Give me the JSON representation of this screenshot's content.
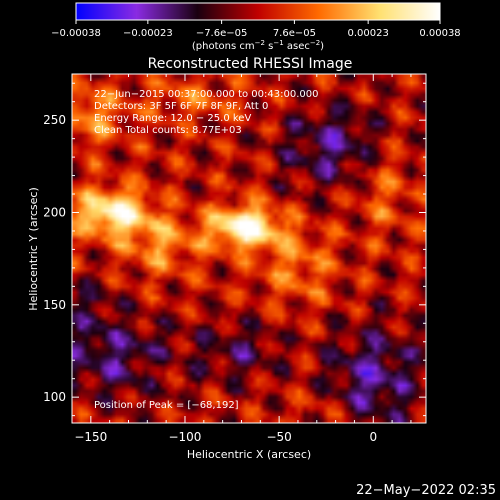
{
  "chart_data": {
    "type": "heatmap",
    "title": "Reconstructed RHESSI Image",
    "xlabel": "Heliocentric X (arcsec)",
    "ylabel": "Heliocentric Y (arcsec)",
    "x_range": [
      -160,
      28
    ],
    "y_range": [
      86,
      275
    ],
    "x_ticks": [
      -150,
      -100,
      -50,
      0
    ],
    "x_tick_labels": [
      "−150",
      "−100",
      "−50",
      "0"
    ],
    "y_ticks": [
      100,
      150,
      200,
      250
    ],
    "y_tick_labels": [
      "100",
      "150",
      "200",
      "250"
    ],
    "colorbar": {
      "range": [
        -0.00038,
        0.00038
      ],
      "ticks": [
        -0.00038,
        -0.00023,
        -7.6e-05,
        7.6e-05,
        0.00023,
        0.00038
      ],
      "tick_labels": [
        "−0.00038",
        "−0.00023",
        "−7.6e−05",
        "7.6e−05",
        "0.00023",
        "0.00038"
      ],
      "units_prefix": "(photons cm",
      "units_exp1": "−2",
      "units_mid1": " s",
      "units_exp2": "−1",
      "units_mid2": " asec",
      "units_exp3": "−2",
      "units_suffix": ")",
      "colors": [
        "#0000ff",
        "#8a2be2",
        "#1a0010",
        "#c00000",
        "#ff6a00",
        "#ffe070",
        "#ffffff"
      ]
    },
    "annotations": [
      "22−Jun−2015 00:37:00.000 to 00:43:00.000",
      "Detectors: 3F 5F 6F 7F 8F 9F, Att 0",
      "Energy Range: 12.0 − 25.0 keV",
      "Clean     Total counts: 8.77E+03"
    ],
    "peak_label": "Position of Peak = [−68,192]",
    "peak": [
      -68,
      192
    ],
    "sources": [
      {
        "x": -68,
        "y": 192,
        "amp": 0.00038,
        "sx": 13,
        "sy": 8
      },
      {
        "x": -138,
        "y": 200,
        "amp": 0.00034,
        "sx": 14,
        "sy": 9
      },
      {
        "x": -112,
        "y": 182,
        "amp": 0.00016,
        "sx": 14,
        "sy": 10
      },
      {
        "x": -40,
        "y": 170,
        "amp": 0.00013,
        "sx": 14,
        "sy": 14
      },
      {
        "x": -150,
        "y": 252,
        "amp": 0.00015,
        "sx": 12,
        "sy": 12
      },
      {
        "x": -95,
        "y": 262,
        "amp": 0.0001,
        "sx": 18,
        "sy": 8
      },
      {
        "x": 5,
        "y": 215,
        "amp": 0.00011,
        "sx": 12,
        "sy": 18
      },
      {
        "x": -115,
        "y": 115,
        "amp": 8e-05,
        "sx": 10,
        "sy": 6
      },
      {
        "x": -25,
        "y": 95,
        "amp": 6e-05,
        "sx": 12,
        "sy": 8
      }
    ],
    "negative_regions": [
      {
        "x": -20,
        "y": 235,
        "amp": 0.00018,
        "sx": 20,
        "sy": 16
      },
      {
        "x": -135,
        "y": 120,
        "amp": 0.00018,
        "sx": 25,
        "sy": 14
      },
      {
        "x": 0,
        "y": 110,
        "amp": 0.0002,
        "sx": 18,
        "sy": 20
      },
      {
        "x": -70,
        "y": 125,
        "amp": 0.00012,
        "sx": 14,
        "sy": 12
      },
      {
        "x": -150,
        "y": 150,
        "amp": 0.0001,
        "sx": 10,
        "sy": 12
      }
    ]
  },
  "timestamp": "22−May−2022 02:35"
}
